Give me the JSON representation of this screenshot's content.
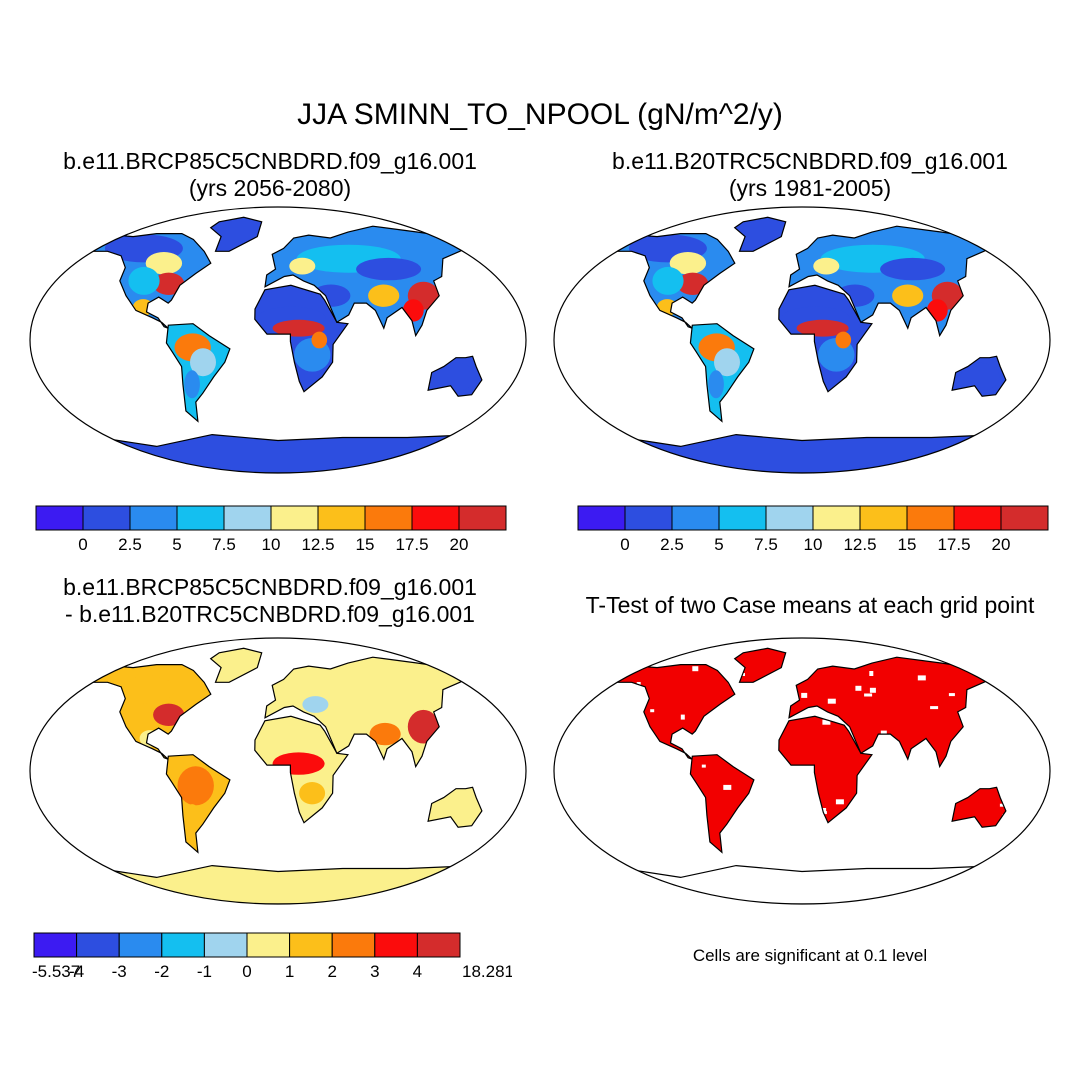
{
  "title": "JJA SMINN_TO_NPOOL (gN/m^2/y)",
  "panels": [
    {
      "id": "p1",
      "title_line1": "b.e11.BRCP85C5CNBDRD.f09_g16.001",
      "title_line2": "(yrs 2056-2080)"
    },
    {
      "id": "p2",
      "title_line1": "b.e11.B20TRC5CNBDRD.f09_g16.001",
      "title_line2": "(yrs 1981-2005)"
    },
    {
      "id": "p3",
      "title_line1": "b.e11.BRCP85C5CNBDRD.f09_g16.001",
      "title_line2": "- b.e11.B20TRC5CNBDRD.f09_g16.001"
    },
    {
      "id": "p4",
      "title_line1": "T-Test of two Case means at each grid point"
    }
  ],
  "colorbars": {
    "absolute": {
      "colors": [
        "#3c1bf2",
        "#2d4ee0",
        "#2a8bef",
        "#14bff0",
        "#a0d4ee",
        "#fbf08c",
        "#fcbf1a",
        "#fb7a0c",
        "#fb0c0c",
        "#d42c2c"
      ],
      "labels": [
        "0",
        "2.5",
        "5",
        "7.5",
        "10",
        "12.5",
        "15",
        "17.5",
        "20"
      ]
    },
    "difference": {
      "colors": [
        "#3c1bf2",
        "#2d4ee0",
        "#2a8bef",
        "#14bff0",
        "#a0d4ee",
        "#fbf08c",
        "#fcbf1a",
        "#fb7a0c",
        "#fb0c0c",
        "#d42c2c"
      ],
      "labels": [
        "-5.537",
        "-4",
        "-3",
        "-2",
        "-1",
        "0",
        "1",
        "2",
        "3",
        "4",
        "18.281"
      ]
    }
  },
  "significance_color": "#f20000",
  "significance_note": "Cells are significant at 0.1 level"
}
